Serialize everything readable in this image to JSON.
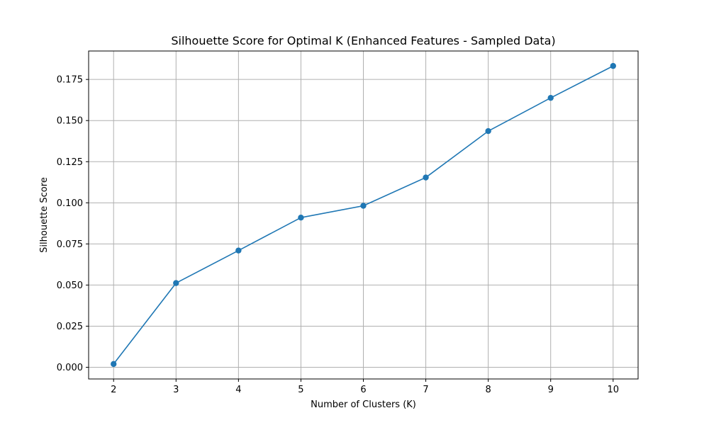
{
  "chart_data": {
    "type": "line",
    "title": "Silhouette Score for Optimal K (Enhanced Features - Sampled Data)",
    "xlabel": "Number of Clusters (K)",
    "ylabel": "Silhouette Score",
    "x": [
      2,
      3,
      4,
      5,
      6,
      7,
      8,
      9,
      10
    ],
    "series": [
      {
        "values": [
          0.002,
          0.0512,
          0.071,
          0.091,
          0.0982,
          0.1154,
          0.1436,
          0.1638,
          0.1832
        ],
        "color": "#1f77b4",
        "marker": "circle"
      }
    ],
    "xlim": [
      1.6,
      10.4
    ],
    "ylim": [
      -0.0071,
      0.1923
    ],
    "xticks": [
      "2",
      "3",
      "4",
      "5",
      "6",
      "7",
      "8",
      "9",
      "10"
    ],
    "yticks": [
      "0.000",
      "0.025",
      "0.050",
      "0.075",
      "0.100",
      "0.125",
      "0.150",
      "0.175"
    ],
    "grid": true,
    "legend": false
  }
}
